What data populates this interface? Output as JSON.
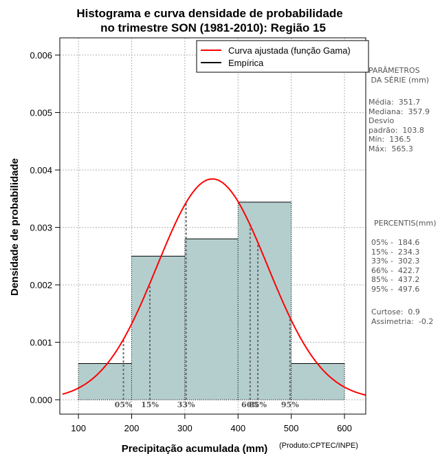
{
  "chart_data": {
    "type": "histogram",
    "title": [
      "Histograma e curva densidade de probabilidade",
      "no trimestre SON (1981-2010): Região 15"
    ],
    "xlabel": "Precipitação acumulada (mm)",
    "ylabel": "Densidade de probabilidade",
    "credit": "(Produto:CPTEC/INPE)",
    "xlim": [
      65,
      640
    ],
    "ylim": [
      -0.00025,
      0.0063
    ],
    "x_ticks": [
      100,
      200,
      300,
      400,
      500,
      600
    ],
    "y_ticks": [
      0.0,
      0.001,
      0.002,
      0.003,
      0.004,
      0.005,
      0.006
    ],
    "y_tick_labels": [
      "0.000",
      "0.001",
      "0.002",
      "0.003",
      "0.004",
      "0.005",
      "0.006"
    ],
    "bins": [
      {
        "from": 100,
        "to": 200,
        "density": 0.00063
      },
      {
        "from": 200,
        "to": 300,
        "density": 0.0025
      },
      {
        "from": 300,
        "to": 400,
        "density": 0.0028
      },
      {
        "from": 400,
        "to": 500,
        "density": 0.00344
      },
      {
        "from": 500,
        "to": 600,
        "density": 0.00063
      }
    ],
    "fitted_curve": {
      "name": "Curva ajustada (função Gama)",
      "color": "#ff0000",
      "mean": 351.7,
      "sd": 103.8
    },
    "empirical": {
      "name": "Empírica",
      "color": "#000000"
    },
    "percentile_markers": [
      {
        "label": "05%",
        "value": 184.6
      },
      {
        "label": "15%",
        "value": 234.3
      },
      {
        "label": "33%",
        "value": 302.3
      },
      {
        "label": "66%",
        "value": 422.7
      },
      {
        "label": "85%",
        "value": 437.2
      },
      {
        "label": "95%",
        "value": 497.6
      }
    ],
    "legend_position": "top-right",
    "grid": true,
    "bar_color": "#b4cece"
  },
  "side_panel": {
    "params_title": "PARÂMETROS\n DA SÉRIE (mm)",
    "params_text": "Média:  351.7\nMediana:  357.9\nDesvio\npadrão:  103.8\nMín:  136.5\nMáx:  565.3",
    "percentis_title": "PERCENTIS(mm)",
    "percentis_text": "05% -  184.6\n15% -  234.3\n33% -  302.3\n66% -  422.7\n85% -  437.2\n95% -  497.6",
    "shape_text": "Curtose:  0.9\nAssimetria:  -0.2"
  }
}
